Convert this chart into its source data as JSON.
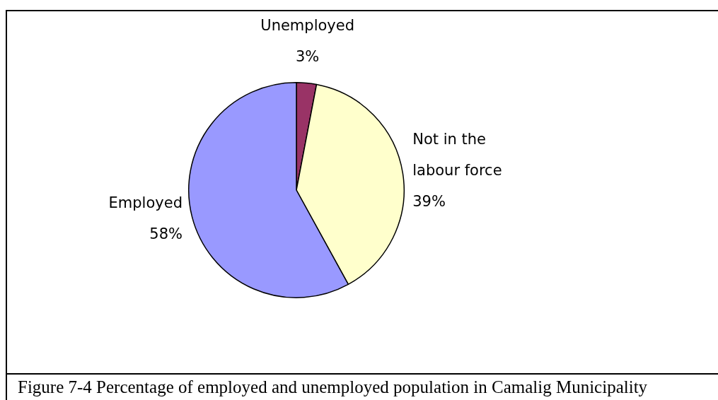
{
  "chart_data": {
    "type": "pie",
    "categories": [
      "Unemployed",
      "Not in the labour force",
      "Employed"
    ],
    "values": [
      3,
      39,
      58
    ],
    "colors": [
      "#993366",
      "#ffffcc",
      "#9999ff"
    ],
    "value_labels": [
      "3%",
      "39%",
      "58%"
    ],
    "legend": false,
    "annotations": [
      "Figure 7-4   Percentage of employed and unemployed population in Camalig Municipality"
    ]
  }
}
